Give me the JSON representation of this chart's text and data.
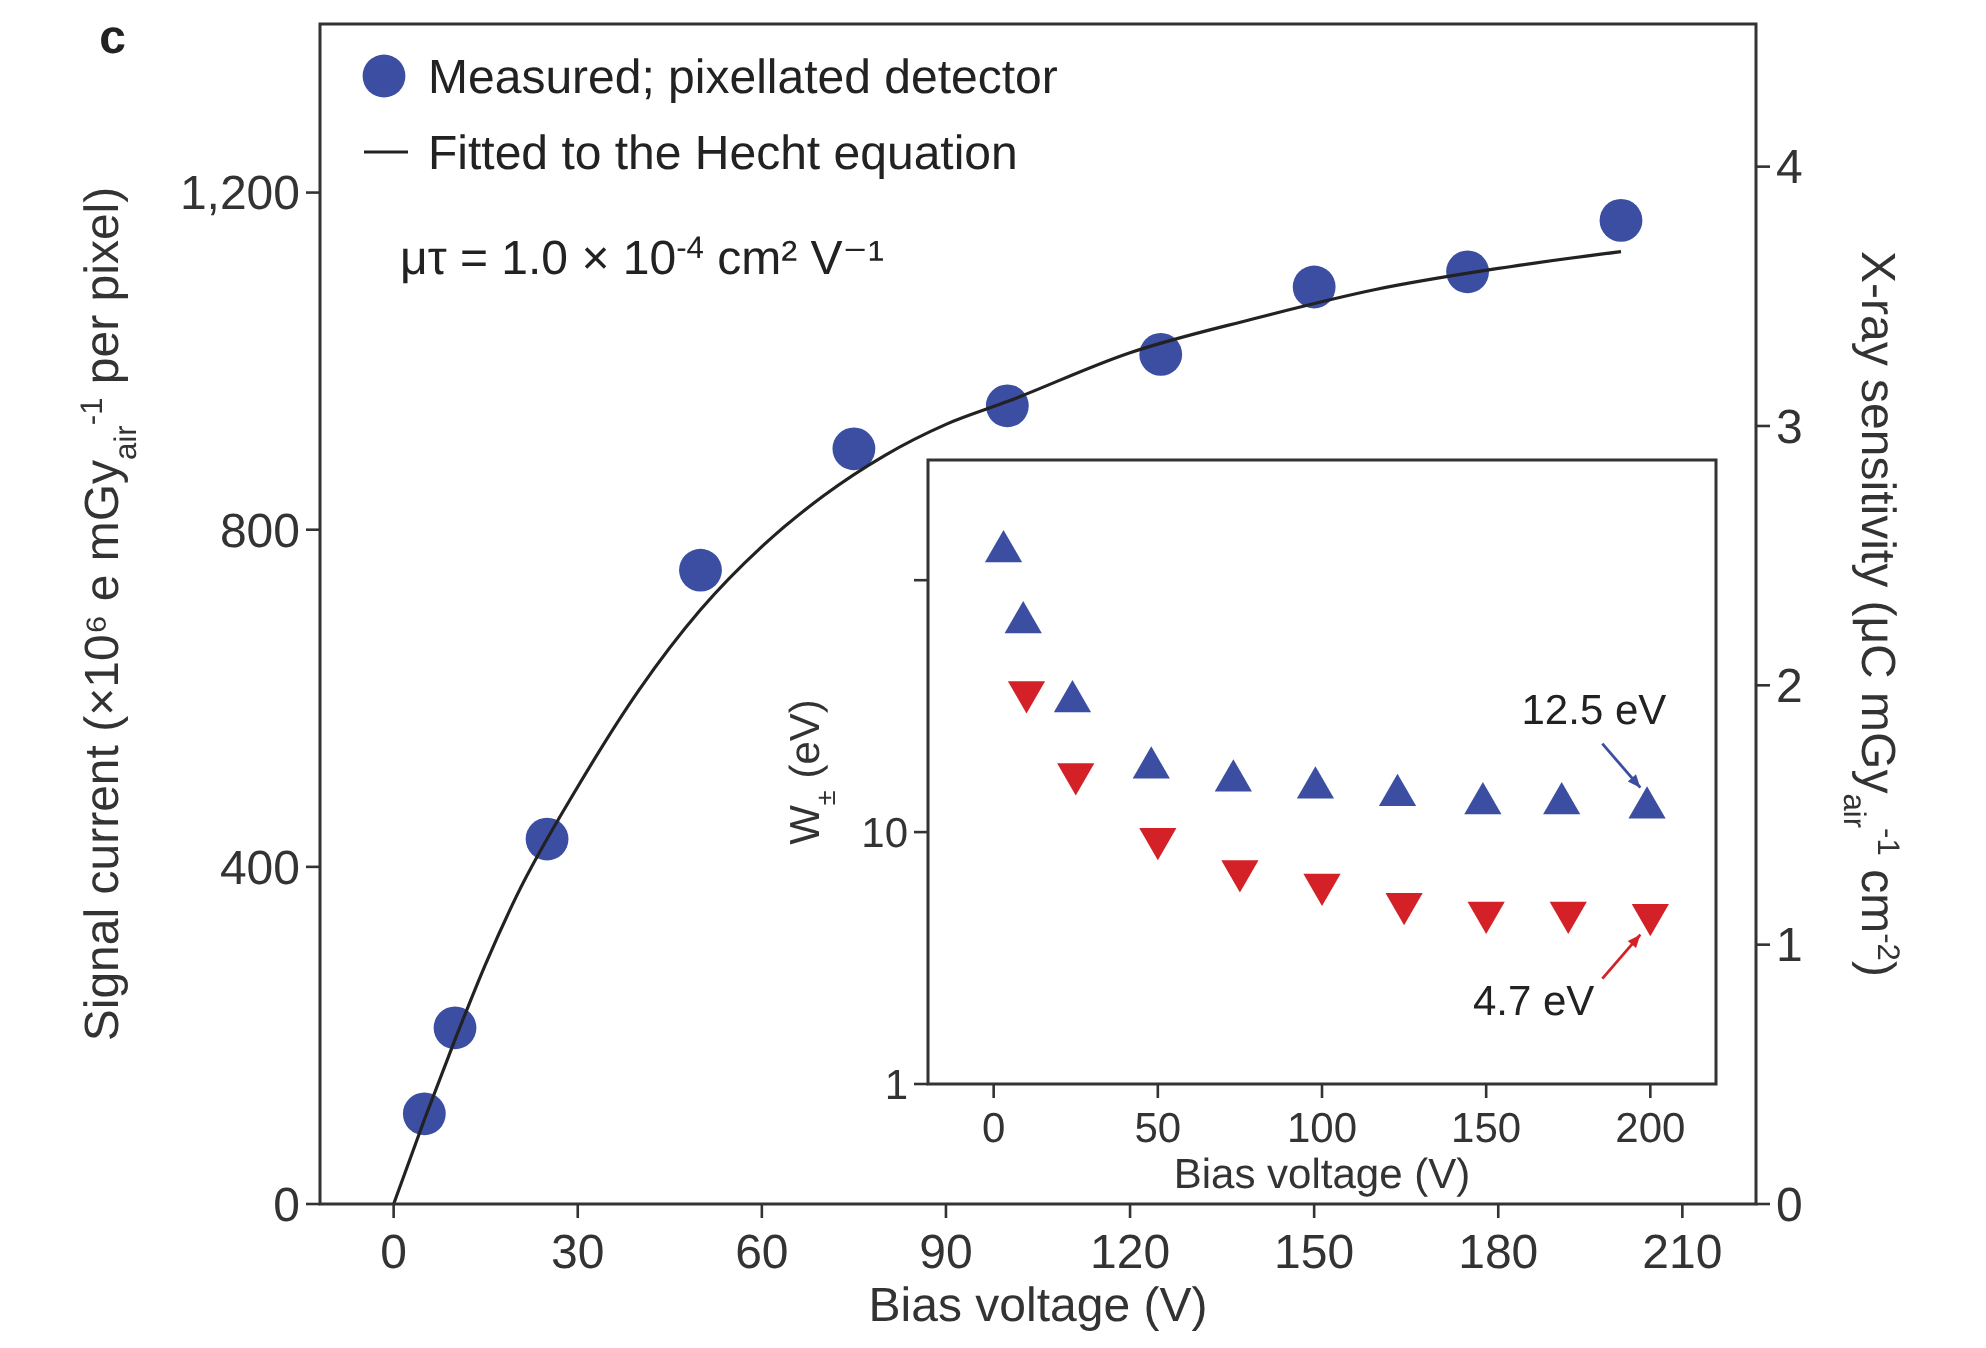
{
  "chart_data": [
    {
      "type": "scatter",
      "xlabel": "Bias voltage (V)",
      "ylabel": "Signal current (×10⁶ e mGy$_{air}$$^{-1}$ per pixel)",
      "y2label": "X-ray sensitivity (μC mGy$_{air}$$^{-1}$ cm$^{-2}$)",
      "annotations": [
        "c",
        "μτ = 1.0 × 10$^{-4}$ cm² V⁻¹"
      ],
      "xlim": [
        -12,
        222
      ],
      "xticks": [
        0,
        30,
        60,
        90,
        120,
        150,
        180,
        210
      ],
      "ylim": [
        0,
        1400
      ],
      "yticks": [
        0,
        400,
        800,
        {
          "value": 1200,
          "label": "1,200"
        }
      ],
      "y2lim": [
        0,
        4.55
      ],
      "y2ticks": [
        0,
        1,
        2,
        3,
        4
      ],
      "legend": "top left",
      "grid": false,
      "series": [
        {
          "name": "Measured; pixellated detector",
          "marker": "circle",
          "color": "#3b4ea2",
          "x": [
            5,
            10,
            25,
            50,
            75,
            100,
            125,
            150,
            175,
            200
          ],
          "values": [
            107,
            209,
            433,
            752,
            896,
            947,
            1008,
            1088,
            1106,
            1167
          ]
        },
        {
          "name": "Fitted to the Hecht equation",
          "type": "line",
          "line_style": "solid",
          "color": "#222222",
          "x": [
            0,
            5,
            10,
            15,
            20,
            30,
            40,
            50,
            60,
            70,
            80,
            90,
            100,
            120,
            140,
            160,
            180,
            200
          ],
          "values": [
            0,
            100,
            195,
            285,
            365,
            495,
            610,
            705,
            780,
            840,
            888,
            925,
            952,
            1010,
            1050,
            1085,
            1110,
            1130
          ]
        }
      ]
    },
    {
      "type": "scatter",
      "xlabel": "Bias voltage (V)",
      "ylabel": "W$_{±}$ (eV)",
      "log": "y",
      "xlim": [
        -20,
        220
      ],
      "xticks": [
        0,
        50,
        100,
        150,
        200
      ],
      "ylim": [
        1,
        300
      ],
      "yticks": [
        1,
        10,
        {
          "value": 100,
          "label": null
        }
      ],
      "legend": false,
      "grid": false,
      "annotations": [
        {
          "text": "12.5 eV",
          "x": 200,
          "y": 12.5
        },
        {
          "text": "4.7 eV",
          "x": 200,
          "y": 4.7
        }
      ],
      "series": [
        {
          "marker": "triangle",
          "color": "#3b4ea2",
          "x": [
            3,
            9,
            24,
            48,
            73,
            98,
            123,
            149,
            173,
            199
          ],
          "values": [
            130,
            68,
            33,
            18,
            16,
            15,
            14,
            13,
            13,
            12.5
          ]
        },
        {
          "marker": "triangle-down",
          "color": "#d42027",
          "x": [
            10,
            25,
            50,
            75,
            100,
            125,
            150,
            175,
            200
          ],
          "values": [
            36,
            17,
            9.4,
            7,
            6.2,
            5.2,
            4.8,
            4.8,
            4.7
          ]
        }
      ]
    }
  ]
}
